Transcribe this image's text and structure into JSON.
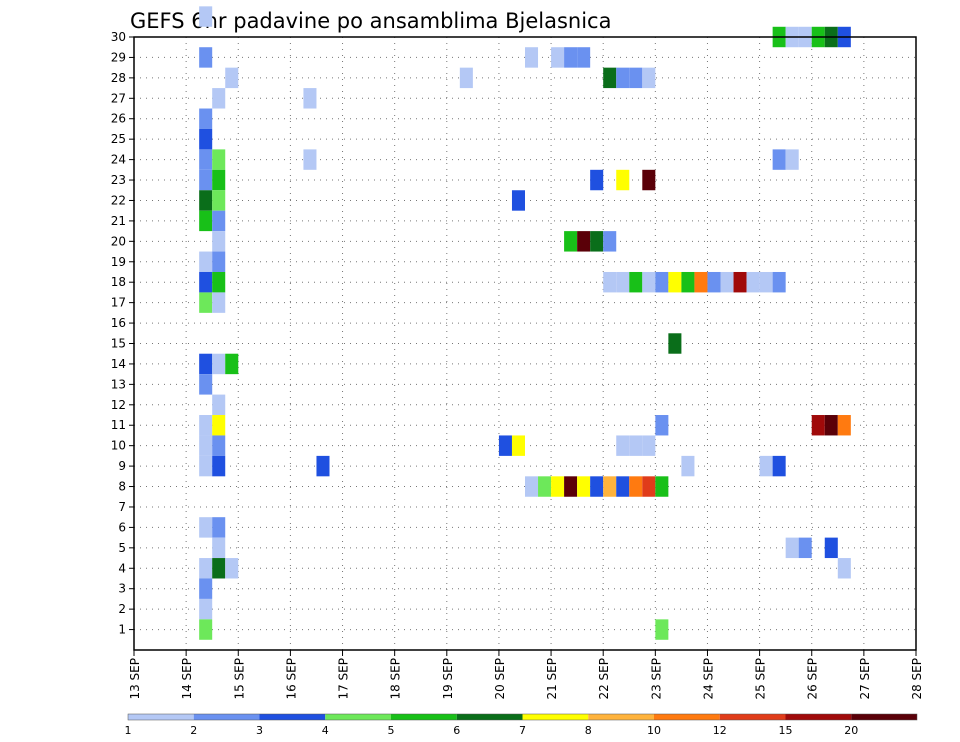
{
  "chart_data": {
    "type": "heatmap",
    "title": "GEFS 6hr padavine po ansamblima Bjelasnica",
    "xlabel": "",
    "ylabel": "",
    "x_ticks": [
      "13 SEP",
      "14 SEP",
      "15 SEP",
      "16 SEP",
      "17 SEP",
      "18 SEP",
      "19 SEP",
      "20 SEP",
      "21 SEP",
      "22 SEP",
      "23 SEP",
      "24 SEP",
      "25 SEP",
      "26 SEP",
      "27 SEP",
      "28 SEP"
    ],
    "y_ticks": [
      "1",
      "2",
      "3",
      "4",
      "5",
      "6",
      "7",
      "8",
      "9",
      "10",
      "11",
      "12",
      "13",
      "14",
      "15",
      "16",
      "17",
      "18",
      "19",
      "20",
      "21",
      "22",
      "23",
      "24",
      "25",
      "26",
      "27",
      "28",
      "29",
      "30"
    ],
    "xlim": [
      0,
      60
    ],
    "ylim": [
      0,
      30
    ],
    "grid": true,
    "legend": {
      "placement": "bottom",
      "labels": [
        "1",
        "2",
        "3",
        "4",
        "5",
        "6",
        "7",
        "8",
        "10",
        "12",
        "15",
        "20"
      ],
      "colors": [
        "#b4c8f5",
        "#6a91f0",
        "#1f50e0",
        "#6de85a",
        "#18c018",
        "#0a6e1a",
        "#ffff00",
        "#ffb33c",
        "#ff7a10",
        "#e03c1a",
        "#a00a0a",
        "#5a0008"
      ]
    },
    "cells": [
      [
        5,
        30,
        1
      ],
      [
        5,
        28,
        2
      ],
      [
        6,
        26,
        1
      ],
      [
        5,
        25,
        2
      ],
      [
        5,
        24,
        3
      ],
      [
        5,
        23,
        2
      ],
      [
        5,
        22,
        2
      ],
      [
        5,
        21,
        6
      ],
      [
        5,
        20,
        5
      ],
      [
        5,
        18,
        1
      ],
      [
        5,
        17,
        3
      ],
      [
        5,
        16,
        4
      ],
      [
        5,
        13,
        3
      ],
      [
        5,
        12,
        2
      ],
      [
        5,
        10,
        1
      ],
      [
        5,
        9,
        1
      ],
      [
        5,
        8,
        1
      ],
      [
        5,
        5,
        1
      ],
      [
        5,
        3,
        1
      ],
      [
        5,
        2,
        2
      ],
      [
        5,
        1,
        1
      ],
      [
        5,
        0,
        4
      ],
      [
        6,
        23,
        4
      ],
      [
        6,
        22,
        5
      ],
      [
        6,
        21,
        4
      ],
      [
        6,
        20,
        2
      ],
      [
        6,
        19,
        1
      ],
      [
        6,
        18,
        2
      ],
      [
        6,
        17,
        5
      ],
      [
        6,
        16,
        1
      ],
      [
        6,
        13,
        1
      ],
      [
        6,
        11,
        1
      ],
      [
        6,
        10,
        7
      ],
      [
        6,
        9,
        2
      ],
      [
        6,
        8,
        3
      ],
      [
        6,
        5,
        2
      ],
      [
        6,
        4,
        1
      ],
      [
        6,
        3,
        6
      ],
      [
        7,
        27,
        1
      ],
      [
        7,
        13,
        5
      ],
      [
        7,
        3,
        1
      ],
      [
        13,
        26,
        1
      ],
      [
        13,
        23,
        1
      ],
      [
        14,
        8,
        3
      ],
      [
        25,
        27,
        1
      ],
      [
        28,
        9,
        3
      ],
      [
        29,
        9,
        7
      ],
      [
        29,
        21,
        3
      ],
      [
        30,
        28,
        1
      ],
      [
        30,
        7,
        1
      ],
      [
        31,
        7,
        4
      ],
      [
        32,
        28,
        1
      ],
      [
        32,
        7,
        7
      ],
      [
        33,
        28,
        2
      ],
      [
        33,
        19,
        5
      ],
      [
        33,
        7,
        12
      ],
      [
        34,
        28,
        2
      ],
      [
        34,
        19,
        12
      ],
      [
        34,
        7,
        7
      ],
      [
        35,
        19,
        6
      ],
      [
        35,
        22,
        3
      ],
      [
        35,
        7,
        3
      ],
      [
        36,
        19,
        2
      ],
      [
        36,
        27,
        6
      ],
      [
        36,
        17,
        1
      ],
      [
        36,
        7,
        8
      ],
      [
        37,
        27,
        2
      ],
      [
        37,
        17,
        1
      ],
      [
        37,
        9,
        1
      ],
      [
        37,
        22,
        7
      ],
      [
        37,
        7,
        3
      ],
      [
        38,
        27,
        2
      ],
      [
        38,
        17,
        5
      ],
      [
        38,
        9,
        1
      ],
      [
        38,
        7,
        9
      ],
      [
        39,
        27,
        1
      ],
      [
        39,
        22,
        12
      ],
      [
        39,
        17,
        1
      ],
      [
        39,
        9,
        1
      ],
      [
        39,
        7,
        10
      ],
      [
        40,
        17,
        2
      ],
      [
        40,
        10,
        2
      ],
      [
        40,
        7,
        5
      ],
      [
        40,
        0,
        4
      ],
      [
        41,
        17,
        7
      ],
      [
        41,
        14,
        6
      ],
      [
        42,
        17,
        5
      ],
      [
        42,
        8,
        1
      ],
      [
        43,
        17,
        9
      ],
      [
        44,
        17,
        2
      ],
      [
        45,
        17,
        1
      ],
      [
        46,
        17,
        11
      ],
      [
        47,
        17,
        1
      ],
      [
        48,
        17,
        1
      ],
      [
        48,
        8,
        1
      ],
      [
        49,
        17,
        2
      ],
      [
        49,
        29,
        5
      ],
      [
        49,
        23,
        2
      ],
      [
        49,
        8,
        3
      ],
      [
        50,
        29,
        1
      ],
      [
        50,
        23,
        1
      ],
      [
        50,
        4,
        1
      ],
      [
        51,
        29,
        1
      ],
      [
        51,
        4,
        2
      ],
      [
        52,
        29,
        5
      ],
      [
        52,
        10,
        11
      ],
      [
        53,
        29,
        6
      ],
      [
        53,
        10,
        12
      ],
      [
        53,
        4,
        3
      ],
      [
        54,
        29,
        3
      ],
      [
        54,
        10,
        9
      ],
      [
        54,
        3,
        1
      ]
    ]
  }
}
